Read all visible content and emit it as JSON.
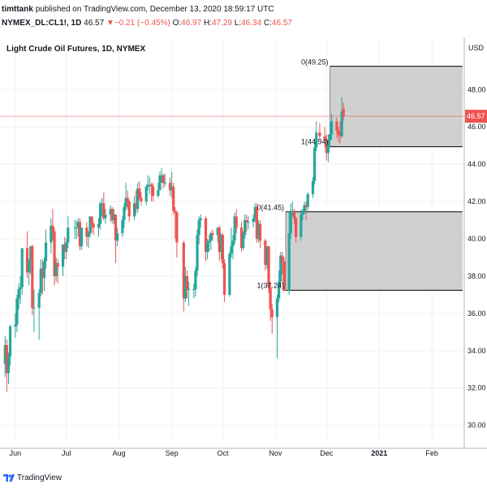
{
  "header": {
    "user": "timttank",
    "published": "published on TradingView.com, December 13, 2020 18:59:17 UTC",
    "symbol": "NYMEX_DL:CL1!, 1D",
    "last": "46.57",
    "change": "−0.21 (−0.45%)",
    "o_label": "O:",
    "o_value": "46.97",
    "h_label": "H:",
    "h_value": "47.29",
    "l_label": "L:",
    "l_value": "46.34",
    "c_label": "C:",
    "c_value": "46.57"
  },
  "footer": {
    "brand": "TradingView"
  },
  "colors": {
    "up": "#26a69a",
    "down": "#ef5350",
    "box_fill": "#c8c8c8",
    "grid": "#eef0f3",
    "price_line": "#ef5350"
  },
  "chart_data": {
    "type": "candlestick",
    "title": "Light Crude Oil Futures, 1D, NYMEX",
    "currency_label": "USD",
    "y_ticks": [
      "30.00",
      "32.00",
      "34.00",
      "36.00",
      "38.00",
      "40.00",
      "42.00",
      "44.00",
      "46.00",
      "48.00"
    ],
    "y_tick_values": [
      30,
      32,
      34,
      36,
      38,
      40,
      42,
      44,
      46,
      48
    ],
    "x_ticks": [
      "Jun",
      "Jul",
      "Aug",
      "Sep",
      "Oct",
      "Nov",
      "Dec",
      "2021",
      "Feb"
    ],
    "x_tick_dates": [
      "2020-06-01",
      "2020-07-01",
      "2020-08-01",
      "2020-09-01",
      "2020-10-01",
      "2020-11-01",
      "2020-12-01",
      "2021-01-01",
      "2021-02-01"
    ],
    "x_tick_bold": [
      false,
      false,
      false,
      false,
      false,
      false,
      false,
      true,
      false
    ],
    "ylim": [
      29.2,
      50.8
    ],
    "xlim": [
      "2020-05-23",
      "2021-02-20"
    ],
    "last_price": "46.57",
    "boxes": [
      {
        "start": "2020-11-07",
        "end": "2021-02-19",
        "top": 41.45,
        "bottom": 37.24,
        "label_top": "0(41.45)",
        "label_bottom": "1(37.24)"
      },
      {
        "start": "2020-12-03",
        "end": "2021-02-19",
        "top": 49.25,
        "bottom": 44.94,
        "label_top": "0(49.25)",
        "label_bottom": "1(44.94)"
      }
    ],
    "candles": [
      {
        "d": "2020-05-22",
        "o": 33.9,
        "h": 34.4,
        "l": 32.5,
        "c": 33.3
      },
      {
        "d": "2020-05-26",
        "o": 33.3,
        "h": 34.8,
        "l": 32.6,
        "c": 34.3
      },
      {
        "d": "2020-05-27",
        "o": 34.3,
        "h": 34.6,
        "l": 31.8,
        "c": 32.8
      },
      {
        "d": "2020-05-28",
        "o": 32.8,
        "h": 33.9,
        "l": 32.2,
        "c": 33.7
      },
      {
        "d": "2020-05-29",
        "o": 33.7,
        "h": 35.4,
        "l": 33.2,
        "c": 35.3
      },
      {
        "d": "2020-06-01",
        "o": 35.3,
        "h": 36.0,
        "l": 34.7,
        "c": 35.4
      },
      {
        "d": "2020-06-02",
        "o": 35.4,
        "h": 37.0,
        "l": 35.0,
        "c": 36.8
      },
      {
        "d": "2020-06-03",
        "o": 36.8,
        "h": 37.6,
        "l": 36.2,
        "c": 37.3
      },
      {
        "d": "2020-06-04",
        "o": 37.3,
        "h": 38.0,
        "l": 36.5,
        "c": 37.4
      },
      {
        "d": "2020-06-05",
        "o": 37.4,
        "h": 39.5,
        "l": 37.0,
        "c": 39.5
      },
      {
        "d": "2020-06-08",
        "o": 39.5,
        "h": 40.4,
        "l": 37.9,
        "c": 38.2
      },
      {
        "d": "2020-06-09",
        "o": 38.2,
        "h": 38.9,
        "l": 37.5,
        "c": 38.9
      },
      {
        "d": "2020-06-10",
        "o": 38.9,
        "h": 39.6,
        "l": 38.1,
        "c": 39.6
      },
      {
        "d": "2020-06-11",
        "o": 39.6,
        "h": 39.7,
        "l": 35.9,
        "c": 36.3
      },
      {
        "d": "2020-06-12",
        "o": 36.3,
        "h": 37.3,
        "l": 35.0,
        "c": 36.3
      },
      {
        "d": "2020-06-15",
        "o": 36.3,
        "h": 37.3,
        "l": 34.6,
        "c": 37.1
      },
      {
        "d": "2020-06-16",
        "o": 37.1,
        "h": 38.9,
        "l": 36.9,
        "c": 38.4
      },
      {
        "d": "2020-06-17",
        "o": 38.4,
        "h": 38.9,
        "l": 37.0,
        "c": 37.9
      },
      {
        "d": "2020-06-18",
        "o": 37.9,
        "h": 39.0,
        "l": 37.2,
        "c": 38.8
      },
      {
        "d": "2020-06-19",
        "o": 38.8,
        "h": 40.5,
        "l": 38.4,
        "c": 39.8
      },
      {
        "d": "2020-06-22",
        "o": 39.8,
        "h": 41.1,
        "l": 39.2,
        "c": 40.7
      },
      {
        "d": "2020-06-23",
        "o": 40.7,
        "h": 41.6,
        "l": 39.9,
        "c": 40.4
      },
      {
        "d": "2020-06-24",
        "o": 40.4,
        "h": 40.6,
        "l": 37.5,
        "c": 38.0
      },
      {
        "d": "2020-06-25",
        "o": 38.0,
        "h": 39.0,
        "l": 37.7,
        "c": 38.7
      },
      {
        "d": "2020-06-26",
        "o": 38.7,
        "h": 38.9,
        "l": 37.6,
        "c": 38.5
      },
      {
        "d": "2020-06-29",
        "o": 38.5,
        "h": 39.7,
        "l": 38.0,
        "c": 39.7
      },
      {
        "d": "2020-06-30",
        "o": 39.7,
        "h": 40.1,
        "l": 38.9,
        "c": 39.3
      },
      {
        "d": "2020-07-01",
        "o": 39.3,
        "h": 40.0,
        "l": 38.9,
        "c": 39.8
      },
      {
        "d": "2020-07-02",
        "o": 39.8,
        "h": 41.2,
        "l": 39.5,
        "c": 40.6
      },
      {
        "d": "2020-07-06",
        "o": 40.6,
        "h": 41.0,
        "l": 40.0,
        "c": 40.6
      },
      {
        "d": "2020-07-07",
        "o": 40.6,
        "h": 41.0,
        "l": 40.0,
        "c": 40.6
      },
      {
        "d": "2020-07-08",
        "o": 40.6,
        "h": 41.1,
        "l": 40.1,
        "c": 40.9
      },
      {
        "d": "2020-07-09",
        "o": 40.9,
        "h": 41.1,
        "l": 39.4,
        "c": 39.6
      },
      {
        "d": "2020-07-10",
        "o": 39.6,
        "h": 40.6,
        "l": 39.4,
        "c": 40.6
      },
      {
        "d": "2020-07-13",
        "o": 40.6,
        "h": 40.9,
        "l": 39.6,
        "c": 40.1
      },
      {
        "d": "2020-07-14",
        "o": 40.1,
        "h": 40.4,
        "l": 39.5,
        "c": 40.3
      },
      {
        "d": "2020-07-15",
        "o": 40.3,
        "h": 41.2,
        "l": 40.1,
        "c": 41.2
      },
      {
        "d": "2020-07-16",
        "o": 41.2,
        "h": 41.2,
        "l": 40.3,
        "c": 40.8
      },
      {
        "d": "2020-07-17",
        "o": 40.8,
        "h": 40.9,
        "l": 40.2,
        "c": 40.6
      },
      {
        "d": "2020-07-20",
        "o": 40.6,
        "h": 41.1,
        "l": 40.1,
        "c": 40.8
      },
      {
        "d": "2020-07-21",
        "o": 40.8,
        "h": 42.0,
        "l": 40.5,
        "c": 41.9
      },
      {
        "d": "2020-07-22",
        "o": 41.9,
        "h": 42.2,
        "l": 41.2,
        "c": 41.9
      },
      {
        "d": "2020-07-23",
        "o": 41.9,
        "h": 42.5,
        "l": 41.0,
        "c": 41.1
      },
      {
        "d": "2020-07-24",
        "o": 41.1,
        "h": 41.6,
        "l": 40.8,
        "c": 41.3
      },
      {
        "d": "2020-07-27",
        "o": 41.3,
        "h": 41.8,
        "l": 40.9,
        "c": 41.6
      },
      {
        "d": "2020-07-28",
        "o": 41.6,
        "h": 41.7,
        "l": 40.8,
        "c": 41.0
      },
      {
        "d": "2020-07-29",
        "o": 41.0,
        "h": 41.6,
        "l": 40.8,
        "c": 41.3
      },
      {
        "d": "2020-07-30",
        "o": 41.3,
        "h": 41.3,
        "l": 38.7,
        "c": 39.9
      },
      {
        "d": "2020-07-31",
        "o": 39.9,
        "h": 40.6,
        "l": 39.6,
        "c": 40.3
      },
      {
        "d": "2020-08-03",
        "o": 40.3,
        "h": 41.2,
        "l": 40.1,
        "c": 41.0
      },
      {
        "d": "2020-08-04",
        "o": 41.0,
        "h": 41.9,
        "l": 40.6,
        "c": 41.7
      },
      {
        "d": "2020-08-05",
        "o": 41.7,
        "h": 43.0,
        "l": 41.5,
        "c": 42.2
      },
      {
        "d": "2020-08-06",
        "o": 42.2,
        "h": 42.6,
        "l": 41.6,
        "c": 42.0
      },
      {
        "d": "2020-08-07",
        "o": 42.0,
        "h": 42.1,
        "l": 40.9,
        "c": 41.2
      },
      {
        "d": "2020-08-10",
        "o": 41.2,
        "h": 42.3,
        "l": 41.0,
        "c": 41.9
      },
      {
        "d": "2020-08-11",
        "o": 41.9,
        "h": 42.6,
        "l": 41.3,
        "c": 41.6
      },
      {
        "d": "2020-08-12",
        "o": 41.6,
        "h": 43.0,
        "l": 41.4,
        "c": 42.7
      },
      {
        "d": "2020-08-13",
        "o": 42.7,
        "h": 43.1,
        "l": 42.1,
        "c": 42.2
      },
      {
        "d": "2020-08-14",
        "o": 42.2,
        "h": 42.5,
        "l": 41.8,
        "c": 42.0
      },
      {
        "d": "2020-08-17",
        "o": 42.0,
        "h": 42.9,
        "l": 41.8,
        "c": 42.8
      },
      {
        "d": "2020-08-18",
        "o": 42.8,
        "h": 43.4,
        "l": 42.6,
        "c": 42.9
      },
      {
        "d": "2020-08-19",
        "o": 42.9,
        "h": 43.3,
        "l": 42.4,
        "c": 42.9
      },
      {
        "d": "2020-08-20",
        "o": 42.9,
        "h": 43.0,
        "l": 42.0,
        "c": 42.8
      },
      {
        "d": "2020-08-21",
        "o": 42.8,
        "h": 43.0,
        "l": 42.0,
        "c": 42.3
      },
      {
        "d": "2020-08-24",
        "o": 42.3,
        "h": 43.0,
        "l": 42.2,
        "c": 42.6
      },
      {
        "d": "2020-08-25",
        "o": 42.6,
        "h": 43.6,
        "l": 42.6,
        "c": 43.4
      },
      {
        "d": "2020-08-26",
        "o": 43.4,
        "h": 43.8,
        "l": 43.0,
        "c": 43.4
      },
      {
        "d": "2020-08-27",
        "o": 43.4,
        "h": 43.5,
        "l": 42.7,
        "c": 43.0
      },
      {
        "d": "2020-08-28",
        "o": 43.0,
        "h": 43.5,
        "l": 42.8,
        "c": 43.0
      },
      {
        "d": "2020-08-31",
        "o": 43.0,
        "h": 43.3,
        "l": 42.3,
        "c": 42.6
      },
      {
        "d": "2020-09-01",
        "o": 42.6,
        "h": 43.6,
        "l": 42.2,
        "c": 42.8
      },
      {
        "d": "2020-09-02",
        "o": 42.8,
        "h": 43.0,
        "l": 41.3,
        "c": 41.5
      },
      {
        "d": "2020-09-03",
        "o": 41.5,
        "h": 41.7,
        "l": 40.0,
        "c": 41.4
      },
      {
        "d": "2020-09-04",
        "o": 41.4,
        "h": 41.5,
        "l": 39.0,
        "c": 39.8
      },
      {
        "d": "2020-09-08",
        "o": 39.8,
        "h": 39.9,
        "l": 36.1,
        "c": 36.8
      },
      {
        "d": "2020-09-09",
        "o": 36.8,
        "h": 38.5,
        "l": 36.6,
        "c": 38.0
      },
      {
        "d": "2020-09-10",
        "o": 38.0,
        "h": 38.3,
        "l": 36.8,
        "c": 37.3
      },
      {
        "d": "2020-09-11",
        "o": 37.3,
        "h": 37.7,
        "l": 36.4,
        "c": 37.3
      },
      {
        "d": "2020-09-14",
        "o": 37.3,
        "h": 37.6,
        "l": 36.8,
        "c": 37.3
      },
      {
        "d": "2020-09-15",
        "o": 37.3,
        "h": 38.5,
        "l": 36.9,
        "c": 38.3
      },
      {
        "d": "2020-09-16",
        "o": 38.3,
        "h": 40.5,
        "l": 38.0,
        "c": 40.2
      },
      {
        "d": "2020-09-17",
        "o": 40.2,
        "h": 41.2,
        "l": 39.7,
        "c": 41.0
      },
      {
        "d": "2020-09-18",
        "o": 41.0,
        "h": 41.3,
        "l": 40.6,
        "c": 41.1
      },
      {
        "d": "2020-09-21",
        "o": 41.1,
        "h": 41.2,
        "l": 38.8,
        "c": 39.3
      },
      {
        "d": "2020-09-22",
        "o": 39.3,
        "h": 40.0,
        "l": 38.9,
        "c": 39.8
      },
      {
        "d": "2020-09-23",
        "o": 39.8,
        "h": 40.2,
        "l": 39.3,
        "c": 39.9
      },
      {
        "d": "2020-09-24",
        "o": 39.9,
        "h": 40.4,
        "l": 39.4,
        "c": 40.3
      },
      {
        "d": "2020-09-25",
        "o": 40.3,
        "h": 40.5,
        "l": 39.9,
        "c": 40.2
      },
      {
        "d": "2020-09-28",
        "o": 40.2,
        "h": 40.6,
        "l": 39.8,
        "c": 40.6
      },
      {
        "d": "2020-09-29",
        "o": 40.6,
        "h": 40.7,
        "l": 38.8,
        "c": 39.3
      },
      {
        "d": "2020-09-30",
        "o": 39.3,
        "h": 40.3,
        "l": 38.9,
        "c": 40.2
      },
      {
        "d": "2020-10-01",
        "o": 40.2,
        "h": 40.3,
        "l": 38.4,
        "c": 38.7
      },
      {
        "d": "2020-10-02",
        "o": 38.7,
        "h": 38.9,
        "l": 36.6,
        "c": 37.0
      },
      {
        "d": "2020-10-05",
        "o": 37.0,
        "h": 39.3,
        "l": 36.9,
        "c": 39.2
      },
      {
        "d": "2020-10-06",
        "o": 39.2,
        "h": 40.6,
        "l": 39.0,
        "c": 39.6
      },
      {
        "d": "2020-10-07",
        "o": 39.6,
        "h": 40.2,
        "l": 38.9,
        "c": 39.9
      },
      {
        "d": "2020-10-08",
        "o": 39.9,
        "h": 41.4,
        "l": 39.7,
        "c": 41.2
      },
      {
        "d": "2020-10-09",
        "o": 41.2,
        "h": 41.6,
        "l": 40.3,
        "c": 40.6
      },
      {
        "d": "2020-10-12",
        "o": 40.6,
        "h": 40.9,
        "l": 39.3,
        "c": 39.5
      },
      {
        "d": "2020-10-13",
        "o": 39.5,
        "h": 40.4,
        "l": 39.4,
        "c": 40.2
      },
      {
        "d": "2020-10-14",
        "o": 40.2,
        "h": 41.3,
        "l": 40.0,
        "c": 41.0
      },
      {
        "d": "2020-10-15",
        "o": 41.0,
        "h": 41.3,
        "l": 40.4,
        "c": 40.9
      },
      {
        "d": "2020-10-16",
        "o": 40.9,
        "h": 41.2,
        "l": 40.5,
        "c": 40.9
      },
      {
        "d": "2020-10-19",
        "o": 40.9,
        "h": 41.3,
        "l": 40.6,
        "c": 41.1
      },
      {
        "d": "2020-10-20",
        "o": 41.1,
        "h": 41.9,
        "l": 40.9,
        "c": 41.7
      },
      {
        "d": "2020-10-21",
        "o": 41.7,
        "h": 41.9,
        "l": 39.8,
        "c": 40.0
      },
      {
        "d": "2020-10-22",
        "o": 40.0,
        "h": 41.0,
        "l": 39.8,
        "c": 40.8
      },
      {
        "d": "2020-10-23",
        "o": 40.8,
        "h": 41.0,
        "l": 39.5,
        "c": 39.9
      },
      {
        "d": "2020-10-26",
        "o": 39.9,
        "h": 40.0,
        "l": 38.3,
        "c": 38.6
      },
      {
        "d": "2020-10-27",
        "o": 38.6,
        "h": 39.6,
        "l": 38.4,
        "c": 39.6
      },
      {
        "d": "2020-10-28",
        "o": 39.6,
        "h": 39.6,
        "l": 37.1,
        "c": 37.4
      },
      {
        "d": "2020-10-29",
        "o": 37.4,
        "h": 37.6,
        "l": 35.6,
        "c": 36.2
      },
      {
        "d": "2020-10-30",
        "o": 36.2,
        "h": 36.5,
        "l": 34.9,
        "c": 35.8
      },
      {
        "d": "2020-11-02",
        "o": 35.8,
        "h": 37.0,
        "l": 33.6,
        "c": 36.8
      },
      {
        "d": "2020-11-03",
        "o": 36.8,
        "h": 38.3,
        "l": 36.6,
        "c": 37.7
      },
      {
        "d": "2020-11-04",
        "o": 37.7,
        "h": 39.3,
        "l": 37.4,
        "c": 39.1
      },
      {
        "d": "2020-11-05",
        "o": 39.1,
        "h": 39.3,
        "l": 38.1,
        "c": 38.8
      },
      {
        "d": "2020-11-06",
        "o": 38.8,
        "h": 39.0,
        "l": 37.2,
        "c": 37.2
      },
      {
        "d": "2020-11-09",
        "o": 37.2,
        "h": 41.5,
        "l": 37.0,
        "c": 40.3
      },
      {
        "d": "2020-11-10",
        "o": 40.3,
        "h": 41.9,
        "l": 40.0,
        "c": 41.4
      },
      {
        "d": "2020-11-11",
        "o": 41.4,
        "h": 42.0,
        "l": 41.2,
        "c": 41.5
      },
      {
        "d": "2020-11-12",
        "o": 41.5,
        "h": 41.6,
        "l": 40.8,
        "c": 41.1
      },
      {
        "d": "2020-11-13",
        "o": 41.1,
        "h": 41.2,
        "l": 39.8,
        "c": 40.1
      },
      {
        "d": "2020-11-16",
        "o": 40.1,
        "h": 41.6,
        "l": 39.9,
        "c": 41.3
      },
      {
        "d": "2020-11-17",
        "o": 41.3,
        "h": 41.6,
        "l": 41.0,
        "c": 41.4
      },
      {
        "d": "2020-11-18",
        "o": 41.4,
        "h": 42.0,
        "l": 41.3,
        "c": 41.8
      },
      {
        "d": "2020-11-19",
        "o": 41.8,
        "h": 42.0,
        "l": 41.0,
        "c": 41.7
      },
      {
        "d": "2020-11-20",
        "o": 41.7,
        "h": 42.5,
        "l": 41.5,
        "c": 42.4
      },
      {
        "d": "2020-11-23",
        "o": 42.4,
        "h": 43.3,
        "l": 42.2,
        "c": 43.1
      },
      {
        "d": "2020-11-24",
        "o": 43.1,
        "h": 45.2,
        "l": 42.9,
        "c": 44.9
      },
      {
        "d": "2020-11-25",
        "o": 44.9,
        "h": 46.3,
        "l": 44.7,
        "c": 45.7
      },
      {
        "d": "2020-11-27",
        "o": 45.7,
        "h": 46.2,
        "l": 45.3,
        "c": 45.5
      },
      {
        "d": "2020-11-30",
        "o": 45.5,
        "h": 46.0,
        "l": 44.9,
        "c": 45.3
      },
      {
        "d": "2020-12-01",
        "o": 45.3,
        "h": 45.6,
        "l": 44.2,
        "c": 44.6
      },
      {
        "d": "2020-12-02",
        "o": 44.6,
        "h": 45.6,
        "l": 44.1,
        "c": 45.3
      },
      {
        "d": "2020-12-03",
        "o": 45.3,
        "h": 46.2,
        "l": 44.9,
        "c": 45.6
      },
      {
        "d": "2020-12-04",
        "o": 45.6,
        "h": 46.7,
        "l": 45.3,
        "c": 46.3
      },
      {
        "d": "2020-12-07",
        "o": 46.3,
        "h": 46.5,
        "l": 45.4,
        "c": 45.8
      },
      {
        "d": "2020-12-08",
        "o": 45.8,
        "h": 46.0,
        "l": 45.2,
        "c": 45.6
      },
      {
        "d": "2020-12-09",
        "o": 45.6,
        "h": 46.3,
        "l": 45.1,
        "c": 45.5
      },
      {
        "d": "2020-12-10",
        "o": 45.5,
        "h": 47.6,
        "l": 45.4,
        "c": 46.8
      },
      {
        "d": "2020-12-11",
        "o": 46.97,
        "h": 47.29,
        "l": 46.34,
        "c": 46.57
      }
    ]
  }
}
